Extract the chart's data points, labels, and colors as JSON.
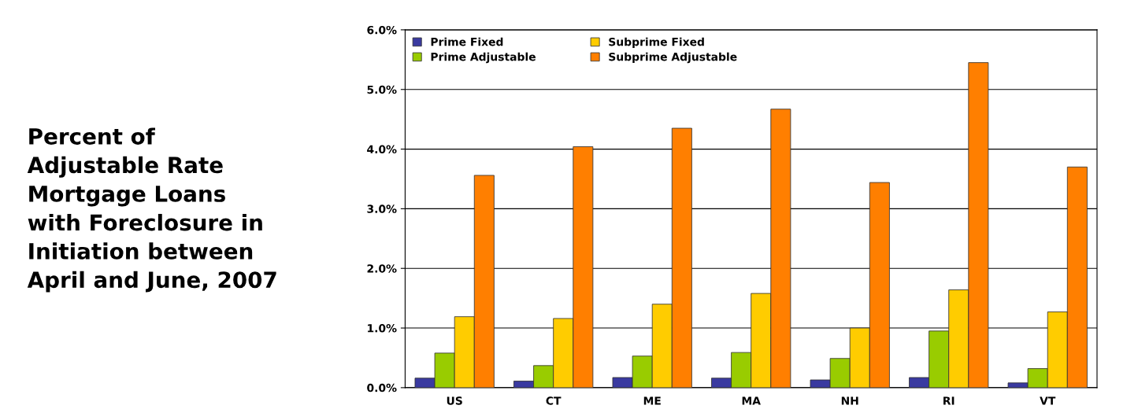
{
  "chart_data": {
    "type": "bar",
    "title": "Percent of\nAdjustable Rate\nMortgage Loans\nwith Foreclosure in\nInitiation between\nApril and June, 2007",
    "categories": [
      "US",
      "CT",
      "ME",
      "MA",
      "NH",
      "RI",
      "VT"
    ],
    "series": [
      {
        "name": "Prime Fixed",
        "color": "#3a3aa0",
        "values": [
          0.16,
          0.11,
          0.17,
          0.16,
          0.13,
          0.17,
          0.08
        ]
      },
      {
        "name": "Prime Adjustable",
        "color": "#99cc00",
        "values": [
          0.58,
          0.37,
          0.53,
          0.59,
          0.49,
          0.95,
          0.32
        ]
      },
      {
        "name": "Subprime Fixed",
        "color": "#ffcc00",
        "values": [
          1.19,
          1.16,
          1.4,
          1.58,
          1.0,
          1.64,
          1.27
        ]
      },
      {
        "name": "Subprime Adjustable",
        "color": "#ff7f00",
        "values": [
          3.56,
          4.04,
          4.35,
          4.67,
          3.44,
          5.45,
          3.7
        ]
      }
    ],
    "ylim": [
      0,
      6
    ],
    "yticks": [
      {
        "value": 0,
        "label": "0.0%"
      },
      {
        "value": 1,
        "label": "1.0%"
      },
      {
        "value": 2,
        "label": "2.0%"
      },
      {
        "value": 3,
        "label": "3.0%"
      },
      {
        "value": 4,
        "label": "4.0%"
      },
      {
        "value": 5,
        "label": "5.0%"
      },
      {
        "value": 6,
        "label": "6.0%"
      }
    ],
    "grid": "y",
    "legend": "top left"
  }
}
